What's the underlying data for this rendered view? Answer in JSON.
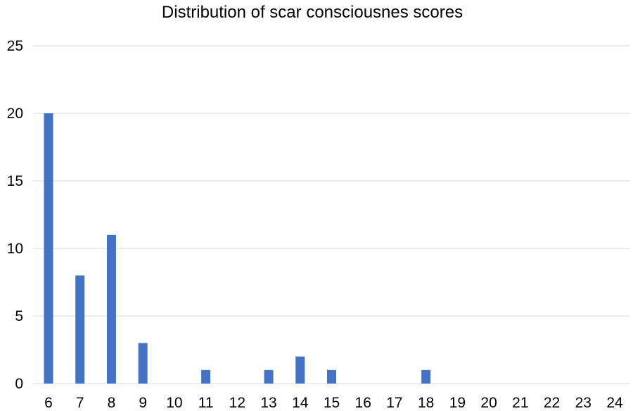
{
  "chart_data": {
    "type": "bar",
    "title": "Distribution of scar consciousnes scores",
    "xlabel": "",
    "ylabel": "",
    "categories": [
      "6",
      "7",
      "8",
      "9",
      "10",
      "11",
      "12",
      "13",
      "14",
      "15",
      "16",
      "17",
      "18",
      "19",
      "20",
      "21",
      "22",
      "23",
      "24"
    ],
    "values": [
      20,
      8,
      11,
      3,
      0,
      1,
      0,
      1,
      2,
      1,
      0,
      0,
      1,
      0,
      0,
      0,
      0,
      0,
      0
    ],
    "ylim": [
      0,
      25
    ],
    "yticks": [
      "0",
      "5",
      "10",
      "15",
      "20",
      "25"
    ],
    "grid": true,
    "legend": "none",
    "colors": {
      "bar": "#4472C4",
      "grid": "#D9D9D9",
      "text": "#000000"
    }
  }
}
